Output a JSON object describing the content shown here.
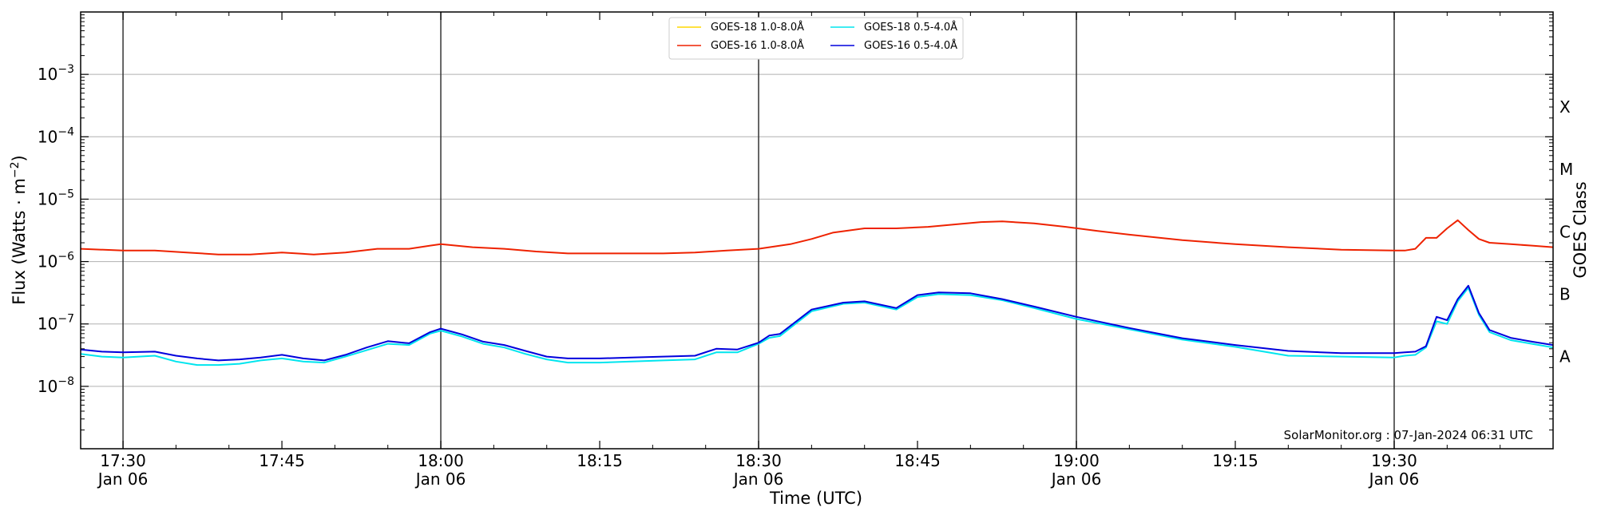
{
  "chart_data": {
    "type": "line",
    "xlabel": "Time (UTC)",
    "ylabel_parts": [
      "Flux (Watts · m",
      "−2",
      ")"
    ],
    "right_axis_label": "GOES Class",
    "y_scale": "log",
    "ylim": [
      1e-09,
      0.01
    ],
    "xlim": [
      "17:26",
      "19:45"
    ],
    "y_ticks": [
      {
        "value": 1e-08,
        "base": "10",
        "exp": "−8"
      },
      {
        "value": 1e-07,
        "base": "10",
        "exp": "−7"
      },
      {
        "value": 1e-06,
        "base": "10",
        "exp": "−6"
      },
      {
        "value": 1e-05,
        "base": "10",
        "exp": "−5"
      },
      {
        "value": 0.0001,
        "base": "10",
        "exp": "−4"
      },
      {
        "value": 0.001,
        "base": "10",
        "exp": "−3"
      }
    ],
    "x_ticks": [
      {
        "time": "17:30",
        "label": "17:30",
        "date": "Jan 06"
      },
      {
        "time": "17:45",
        "label": "17:45",
        "date": ""
      },
      {
        "time": "18:00",
        "label": "18:00",
        "date": "Jan 06"
      },
      {
        "time": "18:15",
        "label": "18:15",
        "date": ""
      },
      {
        "time": "18:30",
        "label": "18:30",
        "date": "Jan 06"
      },
      {
        "time": "18:45",
        "label": "18:45",
        "date": ""
      },
      {
        "time": "19:00",
        "label": "19:00",
        "date": "Jan 06"
      },
      {
        "time": "19:15",
        "label": "19:15",
        "date": ""
      },
      {
        "time": "19:30",
        "label": "19:30",
        "date": "Jan 06"
      }
    ],
    "vertical_lines": [
      "17:30",
      "18:00",
      "18:30",
      "19:00",
      "19:30"
    ],
    "goes_classes": [
      {
        "label": "A",
        "value": 3e-08
      },
      {
        "label": "B",
        "value": 3e-07
      },
      {
        "label": "C",
        "value": 3e-06
      },
      {
        "label": "M",
        "value": 3e-05
      },
      {
        "label": "X",
        "value": 0.0003
      }
    ],
    "grid": "horizontal",
    "legend_position": "top-center",
    "credit": "SolarMonitor.org : 07-Jan-2024 06:31 UTC",
    "colors": {
      "grid": "#b0b0b0",
      "vline": "#333333"
    },
    "series": [
      {
        "name": "GOES-18 1.0-8.0Å",
        "color": "#FFD700",
        "x": [],
        "y": []
      },
      {
        "name": "GOES-16 1.0-8.0Å",
        "color": "#EE2200",
        "x": [
          "17:26",
          "17:30",
          "17:33",
          "17:36",
          "17:39",
          "17:42",
          "17:45",
          "17:48",
          "17:51",
          "17:54",
          "17:57",
          "17:59",
          "18:00",
          "18:03",
          "18:06",
          "18:09",
          "18:12",
          "18:15",
          "18:18",
          "18:21",
          "18:24",
          "18:27",
          "18:30",
          "18:33",
          "18:35",
          "18:37",
          "18:40",
          "18:43",
          "18:46",
          "18:49",
          "18:51",
          "18:53",
          "18:56",
          "18:59",
          "19:02",
          "19:05",
          "19:10",
          "19:15",
          "19:20",
          "19:25",
          "19:30",
          "19:31",
          "19:32",
          "19:33",
          "19:34",
          "19:35",
          "19:36",
          "19:37",
          "19:38",
          "19:39",
          "19:41",
          "19:43",
          "19:45"
        ],
        "y": [
          1.6e-06,
          1.5e-06,
          1.5e-06,
          1.4e-06,
          1.3e-06,
          1.3e-06,
          1.4e-06,
          1.3e-06,
          1.4e-06,
          1.6e-06,
          1.6e-06,
          1.8e-06,
          1.9e-06,
          1.7e-06,
          1.6e-06,
          1.45e-06,
          1.35e-06,
          1.35e-06,
          1.35e-06,
          1.35e-06,
          1.4e-06,
          1.5e-06,
          1.6e-06,
          1.9e-06,
          2.3e-06,
          2.9e-06,
          3.4e-06,
          3.4e-06,
          3.6e-06,
          4e-06,
          4.3e-06,
          4.4e-06,
          4.1e-06,
          3.6e-06,
          3.1e-06,
          2.7e-06,
          2.2e-06,
          1.9e-06,
          1.7e-06,
          1.55e-06,
          1.5e-06,
          1.5e-06,
          1.6e-06,
          2.4e-06,
          2.4e-06,
          3.4e-06,
          4.6e-06,
          3.2e-06,
          2.3e-06,
          2e-06,
          1.9e-06,
          1.8e-06,
          1.7e-06
        ]
      },
      {
        "name": "GOES-18 0.5-4.0Å",
        "color": "#00E5EE",
        "x": [
          "17:26",
          "17:28",
          "17:30",
          "17:33",
          "17:35",
          "17:37",
          "17:39",
          "17:41",
          "17:43",
          "17:45",
          "17:47",
          "17:49",
          "17:51",
          "17:53",
          "17:55",
          "17:57",
          "17:59",
          "18:00",
          "18:02",
          "18:04",
          "18:06",
          "18:08",
          "18:10",
          "18:12",
          "18:15",
          "18:18",
          "18:21",
          "18:24",
          "18:26",
          "18:28",
          "18:30",
          "18:31",
          "18:32",
          "18:35",
          "18:38",
          "18:40",
          "18:43",
          "18:45",
          "18:47",
          "18:50",
          "18:53",
          "18:56",
          "19:00",
          "19:05",
          "19:10",
          "19:15",
          "19:20",
          "19:25",
          "19:30",
          "19:31",
          "19:32",
          "19:33",
          "19:34",
          "19:35",
          "19:36",
          "19:37",
          "19:38",
          "19:39",
          "19:41",
          "19:43",
          "19:45"
        ],
        "y": [
          3.3e-08,
          3e-08,
          2.9e-08,
          3.1e-08,
          2.5e-08,
          2.2e-08,
          2.2e-08,
          2.3e-08,
          2.6e-08,
          2.8e-08,
          2.5e-08,
          2.4e-08,
          3e-08,
          3.8e-08,
          4.8e-08,
          4.6e-08,
          7e-08,
          7.8e-08,
          6.3e-08,
          4.8e-08,
          4.2e-08,
          3.3e-08,
          2.7e-08,
          2.4e-08,
          2.4e-08,
          2.5e-08,
          2.6e-08,
          2.7e-08,
          3.5e-08,
          3.5e-08,
          4.8e-08,
          6e-08,
          6.4e-08,
          1.6e-07,
          2.1e-07,
          2.2e-07,
          1.7e-07,
          2.7e-07,
          3e-07,
          2.9e-07,
          2.4e-07,
          1.8e-07,
          1.2e-07,
          8.2e-08,
          5.6e-08,
          4.3e-08,
          3.1e-08,
          3e-08,
          2.9e-08,
          3.1e-08,
          3.2e-08,
          4.2e-08,
          1.1e-07,
          1e-07,
          2.3e-07,
          3.8e-07,
          1.4e-07,
          7.4e-08,
          5.5e-08,
          4.8e-08,
          4.2e-08
        ]
      },
      {
        "name": "GOES-16 0.5-4.0Å",
        "color": "#0000DD",
        "x": [
          "17:26",
          "17:28",
          "17:30",
          "17:33",
          "17:35",
          "17:37",
          "17:39",
          "17:41",
          "17:43",
          "17:45",
          "17:47",
          "17:49",
          "17:51",
          "17:53",
          "17:55",
          "17:57",
          "17:59",
          "18:00",
          "18:02",
          "18:04",
          "18:06",
          "18:08",
          "18:10",
          "18:12",
          "18:15",
          "18:18",
          "18:21",
          "18:24",
          "18:26",
          "18:28",
          "18:30",
          "18:31",
          "18:32",
          "18:35",
          "18:38",
          "18:40",
          "18:43",
          "18:45",
          "18:47",
          "18:50",
          "18:53",
          "18:56",
          "19:00",
          "19:05",
          "19:10",
          "19:15",
          "19:20",
          "19:25",
          "19:30",
          "19:31",
          "19:32",
          "19:33",
          "19:34",
          "19:35",
          "19:36",
          "19:37",
          "19:38",
          "19:39",
          "19:41",
          "19:43",
          "19:45"
        ],
        "y": [
          3.9e-08,
          3.6e-08,
          3.5e-08,
          3.6e-08,
          3.1e-08,
          2.8e-08,
          2.6e-08,
          2.7e-08,
          2.9e-08,
          3.2e-08,
          2.8e-08,
          2.6e-08,
          3.2e-08,
          4.2e-08,
          5.3e-08,
          4.9e-08,
          7.4e-08,
          8.4e-08,
          6.8e-08,
          5.2e-08,
          4.6e-08,
          3.7e-08,
          3e-08,
          2.8e-08,
          2.8e-08,
          2.9e-08,
          3e-08,
          3.1e-08,
          4e-08,
          3.9e-08,
          5e-08,
          6.5e-08,
          6.9e-08,
          1.7e-07,
          2.2e-07,
          2.3e-07,
          1.8e-07,
          2.9e-07,
          3.2e-07,
          3.1e-07,
          2.5e-07,
          1.9e-07,
          1.3e-07,
          8.6e-08,
          5.9e-08,
          4.6e-08,
          3.7e-08,
          3.4e-08,
          3.4e-08,
          3.5e-08,
          3.6e-08,
          4.4e-08,
          1.3e-07,
          1.15e-07,
          2.5e-07,
          4.1e-07,
          1.5e-07,
          8e-08,
          6e-08,
          5.2e-08,
          4.6e-08
        ]
      }
    ]
  }
}
